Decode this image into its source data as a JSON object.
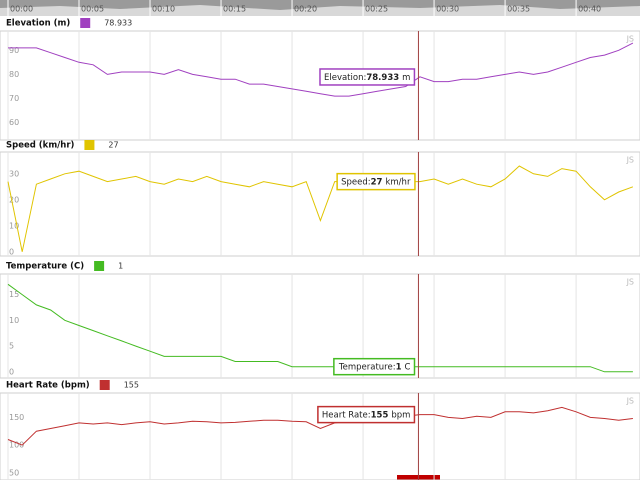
{
  "watermark": "JS",
  "time_axis": {
    "xlim": [
      0,
      44.5
    ],
    "xticks": [
      {
        "value": 0,
        "label": "00:00"
      },
      {
        "value": 5,
        "label": "00:05"
      },
      {
        "value": 10,
        "label": "00:10"
      },
      {
        "value": 15,
        "label": "00:15"
      },
      {
        "value": 20,
        "label": "00:20"
      },
      {
        "value": 25,
        "label": "00:25"
      },
      {
        "value": 30,
        "label": "00:30"
      },
      {
        "value": 35,
        "label": "00:35"
      },
      {
        "value": 40,
        "label": "00:40"
      }
    ]
  },
  "cursor_x": 28.9,
  "chart_data": [
    {
      "type": "line",
      "title": "Elevation (m)",
      "color": "#a040c0",
      "current": 78.933,
      "tooltip_label": "Elevation:",
      "unit": "m",
      "x": [
        0,
        1,
        2,
        3,
        4,
        5,
        6,
        7,
        8,
        9,
        10,
        11,
        12,
        13,
        14,
        15,
        16,
        17,
        18,
        19,
        20,
        21,
        22,
        23,
        24,
        25,
        26,
        27,
        28,
        29,
        30,
        31,
        32,
        33,
        34,
        35,
        36,
        37,
        38,
        39,
        40,
        41,
        42,
        43,
        44
      ],
      "values": [
        91,
        91,
        91,
        89,
        87,
        85,
        84,
        80,
        81,
        81,
        81,
        80,
        82,
        80,
        79,
        78,
        78,
        76,
        76,
        75,
        74,
        73,
        72,
        71,
        71,
        72,
        73,
        74,
        75,
        79,
        77,
        77,
        78,
        78,
        79,
        80,
        81,
        80,
        81,
        83,
        85,
        87,
        88,
        90,
        93
      ],
      "ylim": [
        52.8,
        98
      ],
      "yticks": [
        60,
        70,
        80,
        90
      ]
    },
    {
      "type": "line",
      "title": "Speed (km/hr)",
      "color": "#e0c400",
      "current": 27,
      "tooltip_label": "Speed:",
      "unit": "km/hr",
      "x": [
        0,
        1,
        2,
        3,
        4,
        5,
        6,
        7,
        8,
        9,
        10,
        11,
        12,
        13,
        14,
        15,
        16,
        17,
        18,
        19,
        20,
        21,
        22,
        23,
        24,
        25,
        26,
        27,
        28,
        29,
        30,
        31,
        32,
        33,
        34,
        35,
        36,
        37,
        38,
        39,
        40,
        41,
        42,
        43,
        44
      ],
      "values": [
        27,
        0,
        26,
        28,
        30,
        31,
        29,
        27,
        28,
        29,
        27,
        26,
        28,
        27,
        29,
        27,
        26,
        25,
        27,
        26,
        25,
        27,
        12,
        27,
        27,
        26,
        28,
        28,
        27,
        27,
        28,
        26,
        28,
        26,
        25,
        28,
        33,
        30,
        29,
        32,
        31,
        25,
        20,
        23,
        25
      ],
      "ylim": [
        -1.6,
        38.4
      ],
      "yticks": [
        0,
        10,
        20,
        30
      ]
    },
    {
      "type": "line",
      "title": "Temperature (C)",
      "color": "#44bb22",
      "current": 1,
      "tooltip_label": "Temperature:",
      "unit": "C",
      "x": [
        0,
        1,
        2,
        3,
        4,
        5,
        6,
        7,
        8,
        9,
        10,
        11,
        12,
        13,
        14,
        15,
        16,
        17,
        18,
        19,
        20,
        21,
        22,
        23,
        24,
        25,
        26,
        27,
        28,
        29,
        30,
        31,
        32,
        33,
        34,
        35,
        36,
        37,
        38,
        39,
        40,
        41,
        42,
        43,
        44
      ],
      "values": [
        17,
        15,
        13,
        12,
        10,
        9,
        8,
        7,
        6,
        5,
        4,
        3,
        3,
        3,
        3,
        3,
        2,
        2,
        2,
        2,
        1,
        1,
        1,
        1,
        1,
        1,
        1,
        1,
        1,
        1,
        1,
        1,
        1,
        1,
        1,
        1,
        1,
        1,
        1,
        1,
        1,
        1,
        0,
        0,
        0
      ],
      "ylim": [
        -1.2,
        19
      ],
      "yticks": [
        0,
        5,
        10,
        15
      ]
    },
    {
      "type": "line",
      "title": "Heart Rate (bpm)",
      "color": "#c03030",
      "current": 155,
      "tooltip_label": "Heart Rate:",
      "unit": "bpm",
      "x": [
        0,
        1,
        2,
        3,
        4,
        5,
        6,
        7,
        8,
        9,
        10,
        11,
        12,
        13,
        14,
        15,
        16,
        17,
        18,
        19,
        20,
        21,
        22,
        23,
        24,
        25,
        26,
        27,
        28,
        29,
        30,
        31,
        32,
        33,
        34,
        35,
        36,
        37,
        38,
        39,
        40,
        41,
        42,
        43,
        44
      ],
      "values": [
        110,
        100,
        125,
        130,
        135,
        140,
        138,
        140,
        137,
        140,
        142,
        138,
        140,
        143,
        142,
        140,
        141,
        143,
        145,
        145,
        143,
        142,
        130,
        140,
        143,
        146,
        147,
        149,
        152,
        155,
        155,
        150,
        148,
        152,
        150,
        160,
        160,
        158,
        162,
        168,
        160,
        150,
        148,
        145,
        148
      ],
      "ylim": [
        37,
        194
      ],
      "yticks": [
        50,
        100,
        150
      ]
    }
  ]
}
